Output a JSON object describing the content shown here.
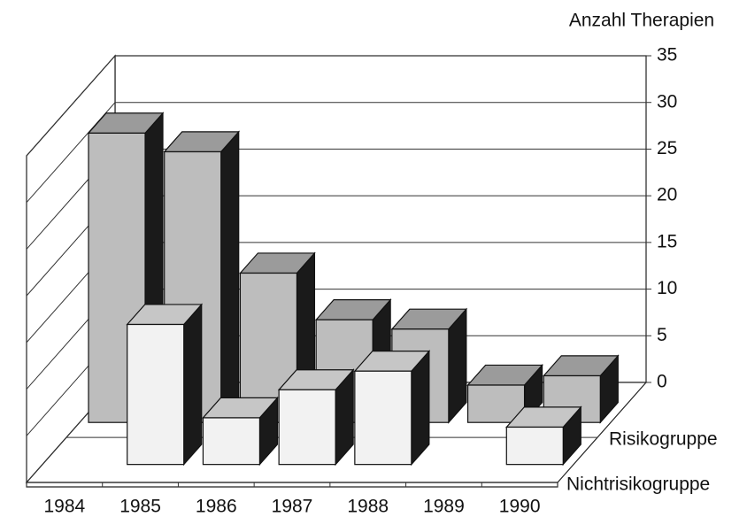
{
  "chart_data": {
    "type": "bar3d",
    "y_axis_label": "Anzahl Therapien",
    "categories": [
      "1984",
      "1985",
      "1986",
      "1987",
      "1988",
      "1989",
      "1990"
    ],
    "series": [
      {
        "name": "Risikogruppe",
        "color": "#bdbdbd",
        "values": [
          31,
          29,
          16,
          11,
          10,
          4,
          5
        ]
      },
      {
        "name": "Nichtrisikogruppe",
        "color": "#f2f2f2",
        "values": [
          null,
          15,
          5,
          8,
          10,
          null,
          4
        ]
      }
    ],
    "ylim": [
      0,
      35
    ],
    "yticks": [
      0,
      5,
      10,
      15,
      20,
      25,
      30,
      35
    ],
    "grid": true
  }
}
